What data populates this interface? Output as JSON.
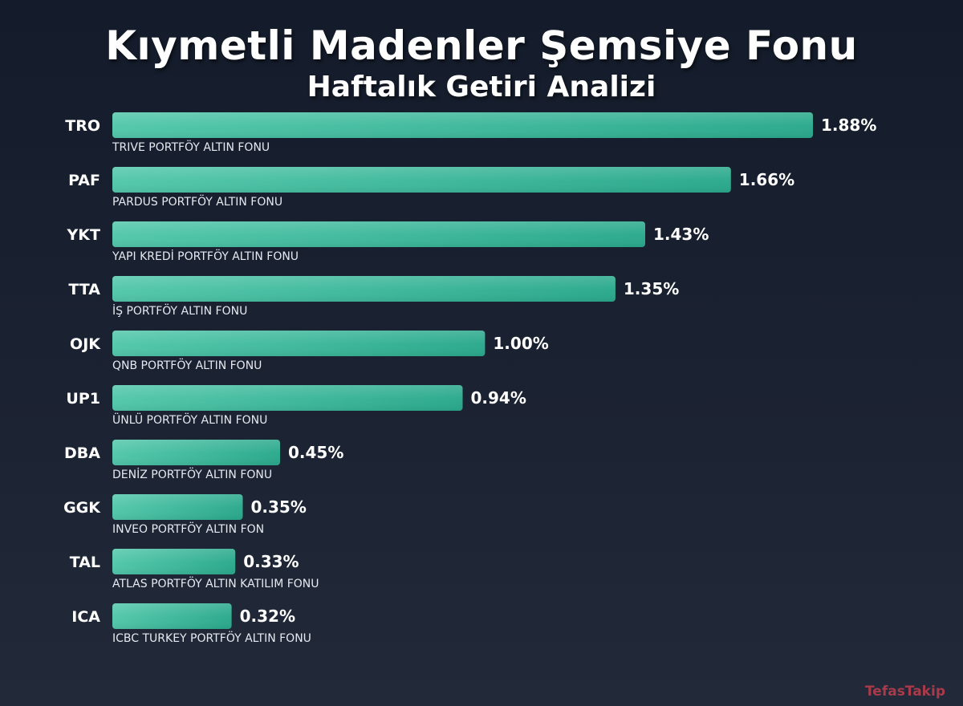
{
  "title": "Kıymetli Madenler Şemsiye Fonu",
  "subtitle": "Haftalık Getiri Analizi",
  "watermark": "TefasTakip",
  "colors": {
    "background": "#1b2232",
    "bar_start": "#52c7aa",
    "bar_end": "#2aa98c"
  },
  "chart_data": {
    "type": "bar",
    "orientation": "horizontal",
    "title": "Kıymetli Madenler Şemsiye Fonu",
    "subtitle": "Haftalık Getiri Analizi",
    "value_suffix": "%",
    "grid": false,
    "legend": "none",
    "categories": [
      "TRO",
      "PAF",
      "YKT",
      "TTA",
      "OJK",
      "UP1",
      "DBA",
      "GGK",
      "TAL",
      "ICA"
    ],
    "names": [
      "TRIVE PORTFÖY ALTIN FONU",
      "PARDUS PORTFÖY ALTIN FONU",
      "YAPI KREDİ PORTFÖY ALTIN FONU",
      "İŞ PORTFÖY ALTIN FONU",
      "QNB PORTFÖY ALTIN FONU",
      "ÜNLÜ PORTFÖY ALTIN FONU",
      "DENİZ PORTFÖY ALTIN FONU",
      "INVEO PORTFÖY ALTIN FON",
      "ATLAS PORTFÖY ALTIN KATILIM FONU",
      "ICBC TURKEY PORTFÖY ALTIN FONU"
    ],
    "values": [
      1.88,
      1.66,
      1.43,
      1.35,
      1.0,
      0.94,
      0.45,
      0.35,
      0.33,
      0.32
    ],
    "labels": [
      "1.88%",
      "1.66%",
      "1.43%",
      "1.35%",
      "1.00%",
      "0.94%",
      "0.45%",
      "0.35%",
      "0.33%",
      "0.32%"
    ]
  }
}
